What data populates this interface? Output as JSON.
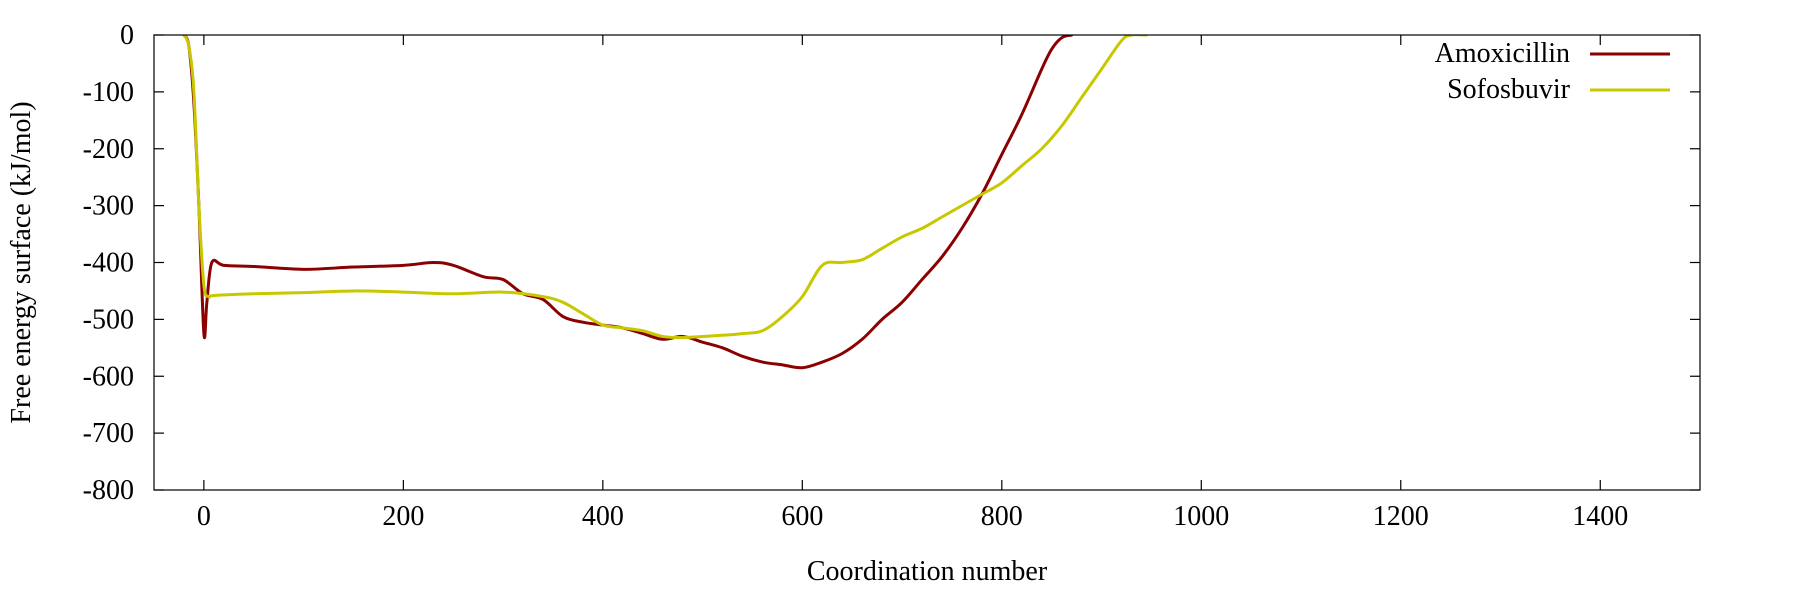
{
  "chart_data": {
    "type": "line",
    "title": "",
    "xlabel": "Coordination number",
    "ylabel": "Free energy surface (kJ/mol)",
    "xlim": [
      -50,
      1500
    ],
    "ylim": [
      -800,
      0
    ],
    "xticks": [
      0,
      200,
      400,
      600,
      800,
      1000,
      1200,
      1400
    ],
    "yticks": [
      0,
      -100,
      -200,
      -300,
      -400,
      -500,
      -600,
      -700,
      -800
    ],
    "grid": false,
    "legend_position": "top-right",
    "series": [
      {
        "name": "Amoxicillin",
        "color": "#8b0000",
        "x": [
          -20,
          -15,
          -10,
          -5,
          0,
          3,
          8,
          20,
          50,
          100,
          150,
          200,
          230,
          250,
          280,
          300,
          320,
          340,
          360,
          380,
          400,
          420,
          440,
          460,
          480,
          500,
          520,
          540,
          560,
          580,
          600,
          620,
          640,
          660,
          680,
          700,
          720,
          740,
          760,
          780,
          800,
          820,
          840,
          850,
          860,
          870
        ],
        "y": [
          0,
          -20,
          -120,
          -300,
          -525,
          -470,
          -400,
          -405,
          -407,
          -412,
          -408,
          -405,
          -400,
          -405,
          -425,
          -430,
          -455,
          -465,
          -495,
          -505,
          -510,
          -515,
          -525,
          -535,
          -530,
          -540,
          -550,
          -565,
          -575,
          -580,
          -585,
          -575,
          -560,
          -535,
          -500,
          -470,
          -430,
          -390,
          -340,
          -280,
          -210,
          -140,
          -60,
          -25,
          -5,
          0
        ]
      },
      {
        "name": "Sofosbuvir",
        "color": "#c8c800",
        "x": [
          -20,
          -15,
          -10,
          -5,
          0,
          5,
          10,
          50,
          100,
          150,
          200,
          250,
          300,
          340,
          360,
          380,
          400,
          420,
          440,
          460,
          480,
          500,
          520,
          540,
          560,
          580,
          600,
          620,
          640,
          660,
          680,
          700,
          720,
          740,
          760,
          780,
          800,
          820,
          840,
          860,
          880,
          900,
          920,
          930,
          945
        ],
        "y": [
          0,
          -20,
          -100,
          -300,
          -440,
          -460,
          -458,
          -455,
          -453,
          -450,
          -452,
          -455,
          -452,
          -460,
          -470,
          -490,
          -510,
          -515,
          -520,
          -530,
          -532,
          -530,
          -528,
          -525,
          -520,
          -495,
          -460,
          -405,
          -400,
          -395,
          -375,
          -355,
          -340,
          -320,
          -300,
          -280,
          -260,
          -230,
          -200,
          -160,
          -110,
          -60,
          -10,
          0,
          0
        ]
      }
    ]
  }
}
